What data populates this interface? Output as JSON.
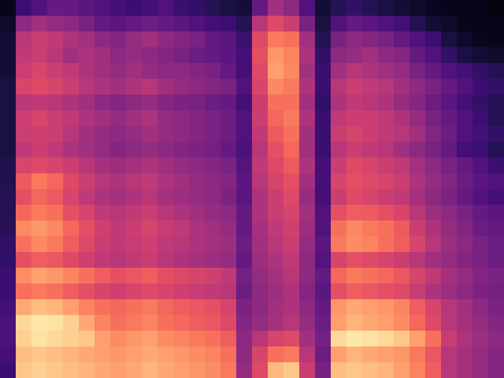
{
  "chart_data": {
    "type": "heatmap",
    "color": "magma",
    "tick_labels": false,
    "zlim": [
      0,
      100
    ],
    "cells": [
      [
        5,
        20,
        25,
        30,
        30,
        28,
        25,
        22,
        20,
        22,
        25,
        20,
        18,
        15,
        12,
        10,
        30,
        45,
        40,
        25,
        10,
        15,
        18,
        15,
        12,
        10,
        8,
        6,
        5,
        4,
        4,
        3
      ],
      [
        8,
        40,
        45,
        42,
        40,
        35,
        30,
        28,
        30,
        32,
        30,
        28,
        25,
        22,
        20,
        15,
        50,
        60,
        55,
        35,
        12,
        25,
        30,
        28,
        25,
        22,
        15,
        10,
        8,
        5,
        5,
        4
      ],
      [
        10,
        50,
        55,
        52,
        48,
        45,
        40,
        38,
        42,
        45,
        40,
        38,
        35,
        30,
        28,
        20,
        60,
        72,
        70,
        45,
        15,
        35,
        40,
        38,
        35,
        30,
        25,
        20,
        12,
        8,
        6,
        5
      ],
      [
        10,
        52,
        55,
        50,
        45,
        48,
        45,
        40,
        42,
        40,
        38,
        35,
        32,
        30,
        28,
        22,
        62,
        78,
        74,
        48,
        18,
        40,
        42,
        45,
        40,
        38,
        30,
        25,
        18,
        12,
        10,
        8
      ],
      [
        10,
        55,
        58,
        55,
        52,
        48,
        45,
        42,
        45,
        42,
        40,
        40,
        38,
        35,
        30,
        22,
        60,
        80,
        75,
        45,
        20,
        45,
        50,
        48,
        45,
        42,
        35,
        30,
        25,
        22,
        18,
        15
      ],
      [
        12,
        58,
        60,
        58,
        55,
        50,
        48,
        45,
        48,
        50,
        45,
        42,
        40,
        38,
        35,
        25,
        58,
        75,
        72,
        48,
        20,
        50,
        55,
        52,
        50,
        45,
        40,
        35,
        30,
        25,
        20,
        18
      ],
      [
        12,
        50,
        52,
        50,
        48,
        45,
        40,
        38,
        40,
        42,
        38,
        36,
        35,
        32,
        30,
        22,
        55,
        70,
        70,
        45,
        18,
        48,
        52,
        50,
        48,
        42,
        38,
        32,
        28,
        22,
        18,
        15
      ],
      [
        12,
        55,
        58,
        55,
        52,
        48,
        45,
        42,
        45,
        48,
        42,
        40,
        38,
        35,
        32,
        25,
        55,
        68,
        72,
        48,
        20,
        52,
        55,
        55,
        52,
        48,
        42,
        35,
        30,
        25,
        20,
        15
      ],
      [
        12,
        55,
        56,
        55,
        50,
        45,
        42,
        40,
        42,
        45,
        42,
        40,
        38,
        35,
        32,
        25,
        52,
        65,
        70,
        45,
        20,
        55,
        58,
        55,
        52,
        50,
        45,
        38,
        32,
        25,
        22,
        18
      ],
      [
        12,
        52,
        55,
        52,
        48,
        45,
        42,
        38,
        40,
        42,
        40,
        38,
        36,
        34,
        30,
        24,
        50,
        62,
        68,
        45,
        20,
        50,
        55,
        52,
        50,
        45,
        40,
        35,
        30,
        22,
        20,
        15
      ],
      [
        14,
        58,
        60,
        58,
        55,
        50,
        46,
        44,
        46,
        48,
        45,
        42,
        40,
        38,
        35,
        26,
        52,
        60,
        65,
        48,
        22,
        55,
        60,
        58,
        55,
        52,
        46,
        40,
        35,
        30,
        25,
        20
      ],
      [
        14,
        65,
        72,
        68,
        60,
        55,
        50,
        48,
        50,
        52,
        48,
        45,
        42,
        40,
        38,
        28,
        50,
        58,
        62,
        45,
        22,
        58,
        62,
        60,
        58,
        55,
        48,
        42,
        38,
        32,
        28,
        25
      ],
      [
        15,
        62,
        68,
        65,
        58,
        52,
        48,
        46,
        48,
        50,
        46,
        44,
        42,
        40,
        36,
        28,
        48,
        55,
        60,
        42,
        22,
        55,
        60,
        58,
        55,
        52,
        46,
        40,
        36,
        30,
        25,
        22
      ],
      [
        15,
        68,
        72,
        70,
        62,
        58,
        52,
        50,
        52,
        55,
        50,
        48,
        45,
        42,
        40,
        30,
        48,
        55,
        58,
        45,
        25,
        62,
        66,
        65,
        62,
        58,
        50,
        44,
        40,
        35,
        30,
        28
      ],
      [
        16,
        75,
        78,
        75,
        68,
        62,
        56,
        52,
        55,
        58,
        54,
        52,
        48,
        45,
        42,
        30,
        46,
        52,
        56,
        44,
        25,
        70,
        75,
        72,
        70,
        65,
        55,
        48,
        42,
        38,
        32,
        30
      ],
      [
        18,
        70,
        75,
        72,
        66,
        60,
        55,
        52,
        54,
        56,
        52,
        50,
        48,
        46,
        44,
        32,
        45,
        50,
        55,
        42,
        28,
        72,
        76,
        74,
        70,
        66,
        58,
        50,
        44,
        40,
        35,
        32
      ],
      [
        18,
        62,
        66,
        64,
        60,
        56,
        52,
        50,
        52,
        54,
        50,
        48,
        46,
        44,
        42,
        30,
        44,
        48,
        52,
        40,
        26,
        58,
        62,
        60,
        58,
        55,
        50,
        45,
        42,
        38,
        35,
        32
      ],
      [
        20,
        76,
        80,
        78,
        74,
        70,
        66,
        62,
        64,
        66,
        62,
        60,
        58,
        56,
        52,
        34,
        42,
        46,
        50,
        40,
        30,
        68,
        72,
        70,
        68,
        64,
        58,
        52,
        46,
        42,
        38,
        35
      ],
      [
        20,
        70,
        72,
        70,
        66,
        62,
        58,
        56,
        58,
        60,
        58,
        56,
        54,
        52,
        50,
        32,
        40,
        44,
        48,
        38,
        28,
        62,
        66,
        64,
        62,
        60,
        54,
        48,
        44,
        40,
        36,
        34
      ],
      [
        22,
        82,
        86,
        84,
        80,
        74,
        70,
        68,
        70,
        72,
        68,
        66,
        64,
        62,
        58,
        36,
        40,
        45,
        48,
        40,
        30,
        78,
        82,
        80,
        78,
        74,
        66,
        58,
        50,
        45,
        40,
        36
      ],
      [
        24,
        92,
        95,
        94,
        90,
        82,
        74,
        70,
        72,
        74,
        70,
        68,
        66,
        64,
        60,
        38,
        42,
        46,
        50,
        42,
        32,
        80,
        84,
        82,
        80,
        76,
        68,
        60,
        50,
        46,
        42,
        38
      ],
      [
        24,
        90,
        94,
        92,
        90,
        88,
        80,
        76,
        78,
        80,
        76,
        74,
        72,
        70,
        66,
        40,
        50,
        58,
        60,
        45,
        34,
        92,
        95,
        94,
        92,
        88,
        80,
        70,
        54,
        48,
        44,
        40
      ],
      [
        22,
        86,
        88,
        86,
        84,
        82,
        80,
        78,
        80,
        82,
        80,
        78,
        76,
        74,
        70,
        40,
        58,
        70,
        72,
        50,
        32,
        80,
        84,
        82,
        80,
        78,
        72,
        64,
        50,
        46,
        42,
        38
      ],
      [
        20,
        88,
        90,
        88,
        86,
        84,
        82,
        80,
        82,
        84,
        82,
        80,
        78,
        76,
        72,
        42,
        60,
        85,
        88,
        55,
        34,
        86,
        88,
        86,
        84,
        80,
        74,
        66,
        50,
        46,
        42,
        38
      ]
    ]
  }
}
